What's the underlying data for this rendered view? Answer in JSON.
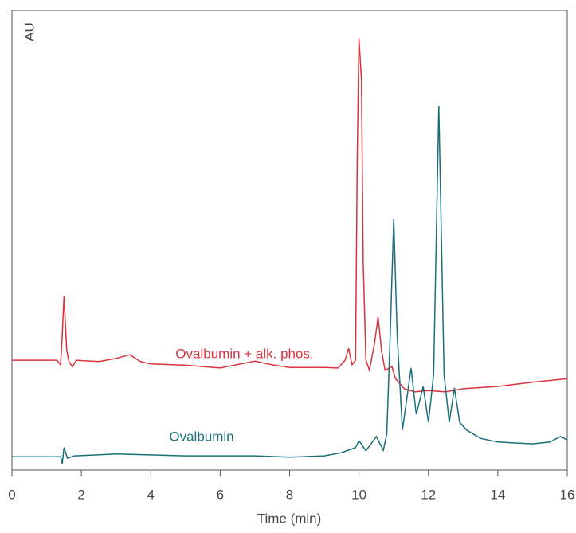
{
  "chart_data": {
    "type": "line",
    "y_label": "AU",
    "x_label": "Time (min)",
    "xlim": [
      0,
      16
    ],
    "xticks": [
      0,
      2,
      4,
      6,
      8,
      10,
      12,
      14,
      16
    ],
    "ylim": [
      0,
      100
    ],
    "series": [
      {
        "name": "Ovalbumin + alk. phos.",
        "color": "#d8343f",
        "x": [
          0,
          1.3,
          1.4,
          1.45,
          1.5,
          1.58,
          1.65,
          1.75,
          1.85,
          2.5,
          3.0,
          3.4,
          3.7,
          4.0,
          5.0,
          6.0,
          7.0,
          7.5,
          8.0,
          9.0,
          9.4,
          9.6,
          9.7,
          9.8,
          9.9,
          9.95,
          10.0,
          10.07,
          10.12,
          10.2,
          10.3,
          10.45,
          10.55,
          10.65,
          10.75,
          10.95,
          11.05,
          11.3,
          11.6,
          12.0,
          12.5,
          13.0,
          14.0,
          15.0,
          16.0
        ],
        "values": [
          23.9,
          23.9,
          22.9,
          29.5,
          37.8,
          26,
          23.4,
          22.5,
          23.9,
          23.6,
          24.3,
          25.1,
          23.6,
          23.1,
          22.8,
          22.2,
          23.7,
          22.9,
          22.3,
          22.3,
          22.2,
          23.9,
          26.5,
          22.9,
          23.9,
          67.6,
          93.9,
          84.9,
          45.1,
          23.9,
          21.7,
          27.7,
          33.3,
          26,
          21.7,
          22.5,
          19.9,
          17.7,
          17,
          17.3,
          17,
          17.7,
          18.2,
          19.1,
          19.9
        ]
      },
      {
        "name": "Ovalbumin",
        "color": "#1a6f7a",
        "x": [
          0,
          1.4,
          1.45,
          1.5,
          1.6,
          1.8,
          3.0,
          5.0,
          7.0,
          8.0,
          9.0,
          9.5,
          9.9,
          10.0,
          10.2,
          10.5,
          10.7,
          10.8,
          10.9,
          11.0,
          11.1,
          11.25,
          11.5,
          11.65,
          11.85,
          12.0,
          12.15,
          12.3,
          12.45,
          12.6,
          12.75,
          12.9,
          13.1,
          13.5,
          14.0,
          15.0,
          15.5,
          15.8,
          16.0
        ],
        "values": [
          2.9,
          2.9,
          1.4,
          4.9,
          2.6,
          3.1,
          3.5,
          3.1,
          3.1,
          2.8,
          3.1,
          3.8,
          4.9,
          6.4,
          4.2,
          7.3,
          4.3,
          7.8,
          29.5,
          54.6,
          29.5,
          8.7,
          22.2,
          12.1,
          18.2,
          10.4,
          20.8,
          79.2,
          20.8,
          10.4,
          17.9,
          10.4,
          8.7,
          6.9,
          6.1,
          5.7,
          6.1,
          7.3,
          6.6
        ]
      }
    ]
  }
}
